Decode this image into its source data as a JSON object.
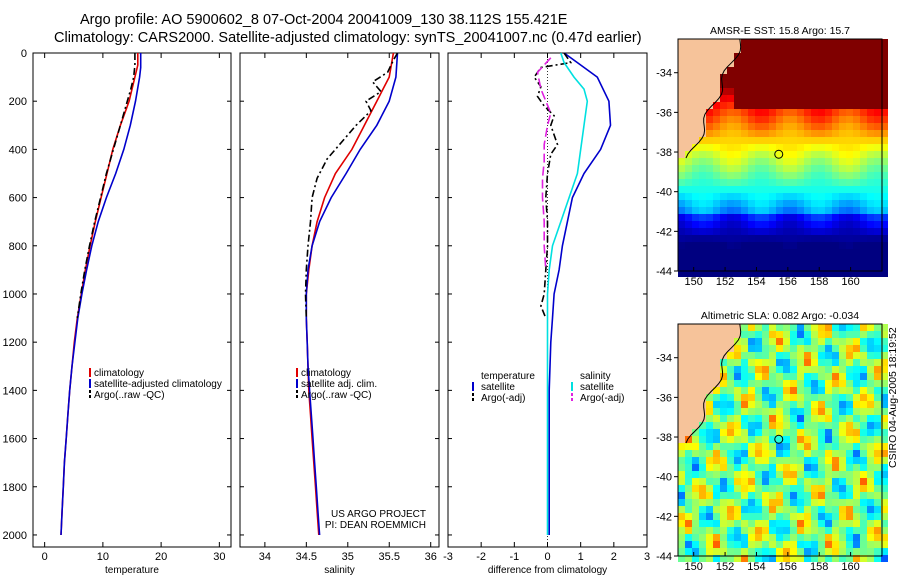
{
  "header": {
    "line1": "Argo profile: AO 5900602_8 07-Oct-2004 20041009_130 38.112S 155.421E",
    "line2": "Climatology: CARS2000. Satellite-adjusted climatology: synTS_20041007.nc (0.47d earlier)"
  },
  "side_label": "CSIRO 04-Aug-2005 18:19:52",
  "colors": {
    "red": "#e00000",
    "blue": "#0000cc",
    "black": "#000000",
    "cyan": "#00e0e0",
    "magenta": "#e020e0",
    "land": "#f6c39a"
  },
  "chart_data": [
    {
      "id": "temperature-panel",
      "type": "line",
      "xlabel": "temperature",
      "ylabel": "",
      "xlim": [
        -2,
        32
      ],
      "ylim": [
        2050,
        0
      ],
      "xticks": [
        0,
        10,
        20,
        30
      ],
      "yticks": [
        0,
        200,
        400,
        600,
        800,
        1000,
        1200,
        1400,
        1600,
        1800,
        2000
      ],
      "series": [
        {
          "name": "climatology",
          "color": "red",
          "dash": "",
          "points": [
            [
              16,
              0
            ],
            [
              16,
              50
            ],
            [
              15.5,
              100
            ],
            [
              14.5,
              200
            ],
            [
              13,
              300
            ],
            [
              11.7,
              400
            ],
            [
              10.7,
              500
            ],
            [
              9.7,
              600
            ],
            [
              8.7,
              700
            ],
            [
              7.8,
              800
            ],
            [
              7,
              900
            ],
            [
              6.3,
              1000
            ],
            [
              5.6,
              1100
            ],
            [
              5.1,
              1200
            ],
            [
              4.7,
              1300
            ],
            [
              4.3,
              1400
            ],
            [
              4,
              1500
            ],
            [
              3.7,
              1600
            ],
            [
              3.4,
              1700
            ],
            [
              3.2,
              1800
            ],
            [
              3,
              1900
            ],
            [
              2.8,
              2000
            ]
          ]
        },
        {
          "name": "satellite-adjusted climatology",
          "color": "blue",
          "dash": "",
          "points": [
            [
              16.5,
              0
            ],
            [
              16.5,
              60
            ],
            [
              16.3,
              100
            ],
            [
              15.6,
              200
            ],
            [
              14.7,
              300
            ],
            [
              13.6,
              400
            ],
            [
              12.2,
              500
            ],
            [
              10.6,
              600
            ],
            [
              9.2,
              700
            ],
            [
              8.1,
              800
            ],
            [
              7.2,
              900
            ],
            [
              6.4,
              1000
            ],
            [
              5.7,
              1100
            ],
            [
              5.2,
              1200
            ],
            [
              4.7,
              1300
            ],
            [
              4.3,
              1400
            ],
            [
              4,
              1500
            ],
            [
              3.7,
              1600
            ],
            [
              3.4,
              1700
            ],
            [
              3.2,
              1800
            ],
            [
              3,
              1900
            ],
            [
              2.8,
              2000
            ]
          ]
        },
        {
          "name": "Argo(..raw -QC)",
          "color": "black",
          "dash": "7,3,2,3",
          "points": [
            [
              15.5,
              0
            ],
            [
              15.5,
              50
            ],
            [
              15.3,
              100
            ],
            [
              14.8,
              150
            ],
            [
              14.2,
              200
            ],
            [
              13,
              300
            ],
            [
              11.8,
              400
            ],
            [
              10.6,
              500
            ],
            [
              9.6,
              600
            ],
            [
              8.6,
              700
            ],
            [
              7.7,
              800
            ],
            [
              6.9,
              900
            ],
            [
              6.2,
              1000
            ],
            [
              5.6,
              1100
            ]
          ]
        }
      ],
      "legend": [
        "climatology",
        "satellite-adjusted climatology",
        "Argo(..raw -QC)"
      ],
      "legend_position": "lower-right"
    },
    {
      "id": "salinity-panel",
      "type": "line",
      "xlabel": "salinity",
      "xlim": [
        33.7,
        36.1
      ],
      "ylim": [
        2050,
        0
      ],
      "xticks": [
        34,
        34.5,
        35,
        35.5,
        36
      ],
      "yticks": [],
      "series": [
        {
          "name": "climatology",
          "color": "red",
          "dash": "",
          "points": [
            [
              35.55,
              0
            ],
            [
              35.5,
              100
            ],
            [
              35.35,
              200
            ],
            [
              35.2,
              300
            ],
            [
              35.05,
              400
            ],
            [
              34.85,
              500
            ],
            [
              34.72,
              600
            ],
            [
              34.63,
              700
            ],
            [
              34.57,
              800
            ],
            [
              34.53,
              900
            ],
            [
              34.5,
              1000
            ],
            [
              34.5,
              1100
            ],
            [
              34.51,
              1200
            ],
            [
              34.52,
              1300
            ],
            [
              34.53,
              1400
            ],
            [
              34.55,
              1500
            ],
            [
              34.57,
              1600
            ],
            [
              34.59,
              1700
            ],
            [
              34.61,
              1800
            ],
            [
              34.63,
              1900
            ],
            [
              34.65,
              2000
            ]
          ]
        },
        {
          "name": "satellite adj. clim.",
          "color": "blue",
          "dash": "",
          "points": [
            [
              35.6,
              0
            ],
            [
              35.58,
              100
            ],
            [
              35.5,
              200
            ],
            [
              35.35,
              300
            ],
            [
              35.15,
              400
            ],
            [
              34.98,
              500
            ],
            [
              34.8,
              600
            ],
            [
              34.66,
              700
            ],
            [
              34.57,
              800
            ],
            [
              34.52,
              900
            ],
            [
              34.5,
              1000
            ],
            [
              34.5,
              1100
            ],
            [
              34.51,
              1200
            ],
            [
              34.52,
              1300
            ],
            [
              34.54,
              1400
            ],
            [
              34.56,
              1500
            ],
            [
              34.58,
              1600
            ],
            [
              34.6,
              1700
            ],
            [
              34.62,
              1800
            ],
            [
              34.64,
              1900
            ],
            [
              34.66,
              2000
            ]
          ]
        },
        {
          "name": "Argo(..raw -QC)",
          "color": "black",
          "dash": "7,3,2,3",
          "points": [
            [
              35.6,
              0
            ],
            [
              35.55,
              30
            ],
            [
              35.48,
              80
            ],
            [
              35.3,
              120
            ],
            [
              35.4,
              160
            ],
            [
              35.22,
              200
            ],
            [
              35.28,
              240
            ],
            [
              35.1,
              300
            ],
            [
              34.9,
              380
            ],
            [
              34.75,
              440
            ],
            [
              34.63,
              520
            ],
            [
              34.57,
              600
            ],
            [
              34.55,
              700
            ],
            [
              34.52,
              800
            ],
            [
              34.5,
              900
            ],
            [
              34.49,
              1000
            ],
            [
              34.5,
              1100
            ]
          ]
        }
      ],
      "legend": [
        "climatology",
        "satellite adj. clim.",
        "Argo(..raw -QC)"
      ],
      "legend_position": "lower-right",
      "annotation": [
        "US ARGO PROJECT",
        "PI: DEAN ROEMMICH"
      ]
    },
    {
      "id": "difference-panel",
      "type": "line",
      "xlabel": "difference from climatology",
      "xlim": [
        -3,
        3
      ],
      "ylim": [
        2050,
        0
      ],
      "xticks": [
        -3,
        -2,
        -1,
        0,
        1,
        2,
        3
      ],
      "yticks": [],
      "series": [
        {
          "name": "temperature satellite",
          "color": "blue",
          "dash": "",
          "points": [
            [
              0.5,
              0
            ],
            [
              0.9,
              40
            ],
            [
              1.5,
              100
            ],
            [
              1.85,
              200
            ],
            [
              1.9,
              300
            ],
            [
              1.6,
              400
            ],
            [
              1.1,
              500
            ],
            [
              0.75,
              600
            ],
            [
              0.6,
              700
            ],
            [
              0.45,
              800
            ],
            [
              0.35,
              900
            ],
            [
              0.2,
              1000
            ],
            [
              0.15,
              1100
            ],
            [
              0.1,
              1200
            ],
            [
              0.05,
              1400
            ],
            [
              0.05,
              1600
            ],
            [
              0.05,
              1800
            ],
            [
              0.05,
              2000
            ]
          ]
        },
        {
          "name": "temperature Argo(-adj)",
          "color": "black",
          "dash": "7,3,2,3",
          "points": [
            [
              0.5,
              0
            ],
            [
              0.7,
              40
            ],
            [
              -0.2,
              60
            ],
            [
              -0.4,
              100
            ],
            [
              -0.2,
              140
            ],
            [
              -0.3,
              180
            ],
            [
              -0.1,
              220
            ],
            [
              0.2,
              260
            ],
            [
              0.1,
              300
            ],
            [
              0.2,
              340
            ],
            [
              0.3,
              380
            ],
            [
              0.1,
              420
            ],
            [
              0,
              500
            ],
            [
              -0.05,
              600
            ],
            [
              0,
              700
            ],
            [
              0,
              800
            ],
            [
              -0.05,
              900
            ],
            [
              -0.1,
              1000
            ],
            [
              -0.2,
              1050
            ],
            [
              -0.05,
              1100
            ]
          ]
        },
        {
          "name": "salinity satellite",
          "color": "cyan",
          "dash": "",
          "points": [
            [
              0.4,
              0
            ],
            [
              0.5,
              40
            ],
            [
              0.8,
              100
            ],
            [
              1.1,
              150
            ],
            [
              1.2,
              200
            ],
            [
              1.1,
              300
            ],
            [
              1,
              400
            ],
            [
              0.9,
              500
            ],
            [
              0.65,
              600
            ],
            [
              0.4,
              700
            ],
            [
              0.15,
              800
            ],
            [
              0.05,
              900
            ],
            [
              0,
              1000
            ],
            [
              0,
              1200
            ],
            [
              0,
              1400
            ],
            [
              0,
              1600
            ],
            [
              0,
              1800
            ],
            [
              0,
              2000
            ]
          ]
        },
        {
          "name": "salinity Argo(-adj)",
          "color": "magenta",
          "dash": "9,4",
          "points": [
            [
              0.1,
              20
            ],
            [
              -0.3,
              80
            ],
            [
              -0.2,
              150
            ],
            [
              0.1,
              250
            ],
            [
              0,
              300
            ],
            [
              -0.1,
              380
            ],
            [
              -0.1,
              450
            ],
            [
              -0.15,
              520
            ],
            [
              -0.15,
              600
            ],
            [
              -0.1,
              700
            ],
            [
              -0.1,
              800
            ],
            [
              -0.05,
              900
            ]
          ]
        }
      ],
      "legend_left": {
        "title": "temperature",
        "items": [
          "satellite",
          "Argo(-adj)"
        ]
      },
      "legend_right": {
        "title": "salinity",
        "items": [
          "satellite",
          "Argo(-adj)"
        ]
      },
      "zero_line": true
    },
    {
      "id": "sst-map",
      "type": "heatmap",
      "title": "AMSR-E SST: 15.8 Argo: 15.7",
      "xlim": [
        149,
        162
      ],
      "ylim": [
        -44,
        -32.3
      ],
      "xticks": [
        150,
        152,
        154,
        156,
        158,
        160
      ],
      "yticks": [
        -34,
        -36,
        -38,
        -40,
        -42,
        -44
      ],
      "argo_position": [
        155.421,
        -38.112
      ]
    },
    {
      "id": "sla-map",
      "type": "heatmap",
      "title": "Altimetric SLA: 0.082 Argo: -0.034",
      "xlim": [
        149,
        162
      ],
      "ylim": [
        -44,
        -32.3
      ],
      "xticks": [
        150,
        152,
        154,
        156,
        158,
        160
      ],
      "yticks": [
        -34,
        -36,
        -38,
        -40,
        -42,
        -44
      ],
      "argo_position": [
        155.421,
        -38.112
      ]
    }
  ]
}
